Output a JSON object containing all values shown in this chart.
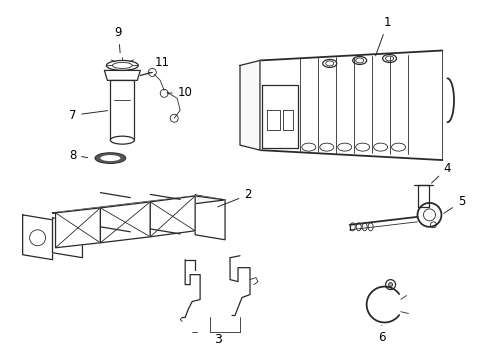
{
  "bg_color": "#ffffff",
  "line_color": "#2a2a2a",
  "label_color": "#000000",
  "figsize": [
    4.89,
    3.6
  ],
  "dpi": 100,
  "lw": 0.9,
  "lw_thin": 0.6,
  "lw_thick": 1.3
}
